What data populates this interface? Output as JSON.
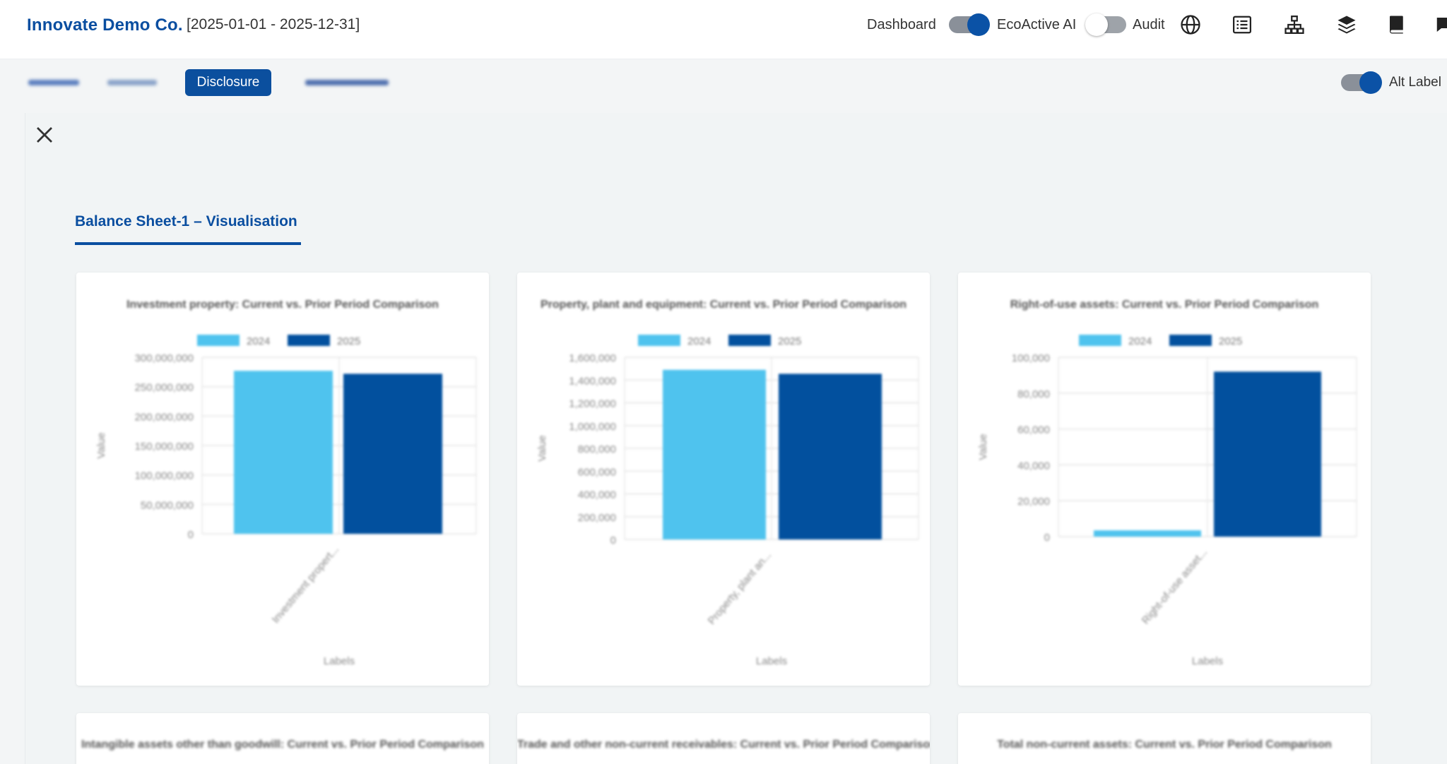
{
  "header": {
    "brand": "Innovate Demo Co.",
    "date_range": "[2025-01-01 - 2025-12-31]",
    "dashboard_label": "Dashboard",
    "ecoactive_label": "EcoActive AI",
    "audit_label": "Audit",
    "dashboard_toggle_on": true,
    "ecoactive_toggle_on": false
  },
  "subnav": {
    "active_tab": "Disclosure",
    "alt_label": "Alt Label",
    "alt_label_toggle_on": true
  },
  "sheet_tab": "Balance Sheet-1 – Visualisation",
  "colors": {
    "brand": "#0a4ea0",
    "series_2024": "#4fc3ee",
    "series_2025": "#02509e"
  },
  "charts": [
    {
      "title": "Investment property: Current vs. Prior Period Comparison",
      "legend": [
        "2024",
        "2025"
      ],
      "ylabel": "Value",
      "xlabel": "Labels",
      "category": "Investment propert...",
      "yticks": [
        "300,000,000",
        "250,000,000",
        "200,000,000",
        "150,000,000",
        "100,000,000",
        "50,000,000",
        "0"
      ],
      "ymax": 300000000,
      "values": [
        277000000,
        272000000
      ]
    },
    {
      "title": "Property, plant and equipment: Current vs. Prior Period Comparison",
      "legend": [
        "2024",
        "2025"
      ],
      "ylabel": "Value",
      "xlabel": "Labels",
      "category": "Property, plant an...",
      "yticks": [
        "1,600,000",
        "1,400,000",
        "1,200,000",
        "1,000,000",
        "800,000",
        "600,000",
        "400,000",
        "200,000",
        "0"
      ],
      "ymax": 1600000,
      "values": [
        1490000,
        1455000
      ]
    },
    {
      "title": "Right-of-use assets: Current vs. Prior Period Comparison",
      "legend": [
        "2024",
        "2025"
      ],
      "ylabel": "Value",
      "xlabel": "Labels",
      "category": "Right-of-use asset...",
      "yticks": [
        "100,000",
        "80,000",
        "60,000",
        "40,000",
        "20,000",
        "0"
      ],
      "ymax": 100000,
      "values": [
        3500,
        92000
      ]
    }
  ],
  "charts_row2": [
    {
      "title": "Intangible assets other than goodwill: Current vs. Prior Period Comparison"
    },
    {
      "title": "Trade and other non-current receivables: Current vs. Prior Period Comparison"
    },
    {
      "title": "Total non-current assets: Current vs. Prior Period Comparison"
    }
  ]
}
